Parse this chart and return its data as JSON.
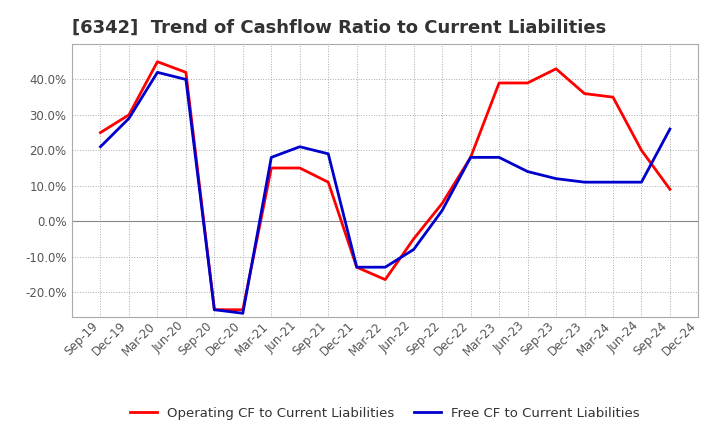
{
  "title": "[6342]  Trend of Cashflow Ratio to Current Liabilities",
  "x_labels": [
    "Sep-19",
    "Dec-19",
    "Mar-20",
    "Jun-20",
    "Sep-20",
    "Dec-20",
    "Mar-21",
    "Jun-21",
    "Sep-21",
    "Dec-21",
    "Mar-22",
    "Jun-22",
    "Sep-22",
    "Dec-22",
    "Mar-23",
    "Jun-23",
    "Sep-23",
    "Dec-23",
    "Mar-24",
    "Jun-24",
    "Sep-24",
    "Dec-24"
  ],
  "operating_cf": [
    25.0,
    30.0,
    45.0,
    42.0,
    -25.0,
    -25.0,
    15.0,
    15.0,
    11.0,
    -13.0,
    -16.5,
    -5.0,
    5.0,
    18.0,
    39.0,
    39.0,
    43.0,
    36.0,
    35.0,
    20.0,
    9.0,
    null
  ],
  "free_cf": [
    21.0,
    29.0,
    42.0,
    40.0,
    -25.0,
    -26.0,
    18.0,
    21.0,
    19.0,
    -13.0,
    -13.0,
    -8.0,
    3.0,
    18.0,
    18.0,
    14.0,
    12.0,
    11.0,
    11.0,
    11.0,
    26.0,
    null
  ],
  "operating_color": "#FF0000",
  "free_color": "#0000CD",
  "ylim": [
    -27,
    50
  ],
  "yticks": [
    -20.0,
    -10.0,
    0.0,
    10.0,
    20.0,
    30.0,
    40.0
  ],
  "grid_color": "#aaaaaa",
  "background_color": "#ffffff",
  "legend_operating": "Operating CF to Current Liabilities",
  "legend_free": "Free CF to Current Liabilities",
  "title_fontsize": 13,
  "title_color": "#333333",
  "axis_fontsize": 8.5,
  "axis_color": "#555555",
  "legend_fontsize": 9.5,
  "line_width": 2.0
}
